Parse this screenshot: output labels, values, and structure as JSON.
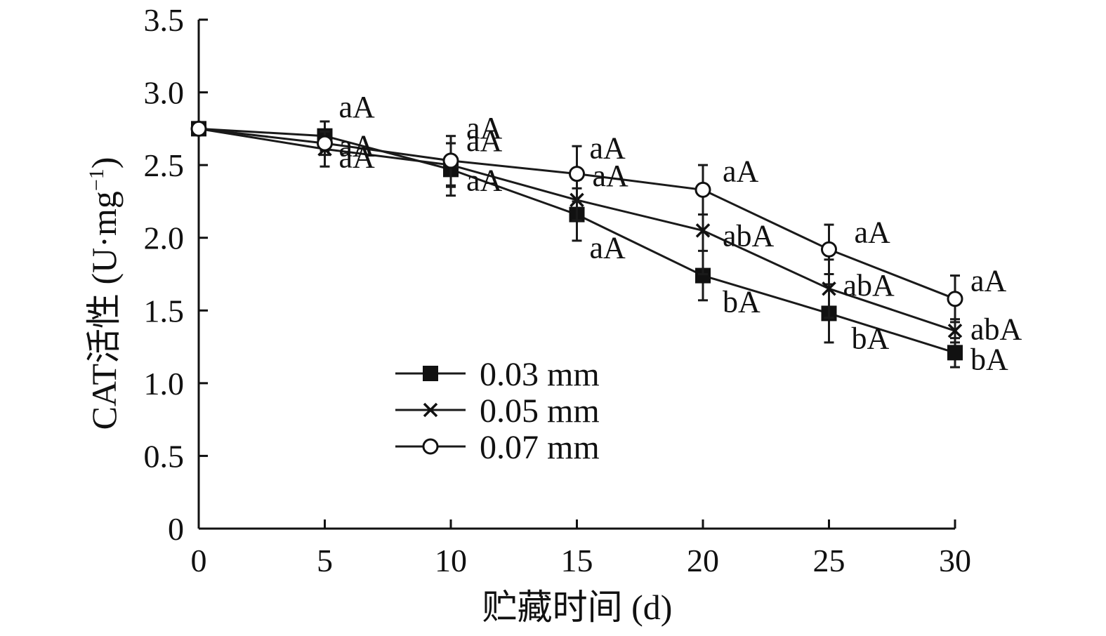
{
  "chart_data": {
    "type": "line",
    "x": [
      0,
      5,
      10,
      15,
      20,
      25,
      30
    ],
    "xlim": [
      0,
      30
    ],
    "ylim": [
      0,
      3.5
    ],
    "x_ticks": [
      "0",
      "5",
      "10",
      "15",
      "20",
      "25",
      "30"
    ],
    "y_ticks": [
      "0",
      "0.5",
      "1.0",
      "1.5",
      "2.0",
      "2.5",
      "3.0",
      "3.5"
    ],
    "xlabel": "贮藏时间 (d)",
    "ylabel": "CAT活性 (U·mg",
    "ylabel_sup": "−1",
    "ylabel_close": ")",
    "grid": false,
    "legend_position": "lower-center",
    "series": [
      {
        "name": "0.03 mm",
        "marker": "filled-square",
        "values": [
          2.75,
          2.7,
          2.47,
          2.16,
          1.74,
          1.48,
          1.21
        ],
        "errors": [
          0.04,
          0.1,
          0.18,
          0.18,
          0.17,
          0.2,
          0.1
        ],
        "labels": [
          "",
          "aA",
          "aA",
          "aA",
          "bA",
          "bA",
          "bA"
        ]
      },
      {
        "name": "0.05 mm",
        "marker": "cross",
        "values": [
          2.75,
          2.61,
          2.5,
          2.26,
          2.05,
          1.65,
          1.36
        ],
        "errors": [
          0.04,
          0.12,
          0.15,
          0.14,
          0.3,
          0.2,
          0.08
        ],
        "labels": [
          "",
          "aA",
          "aA",
          "aA",
          "abA",
          "abA",
          "abA"
        ]
      },
      {
        "name": "0.07 mm",
        "marker": "open-circle",
        "values": [
          2.75,
          2.65,
          2.53,
          2.44,
          2.33,
          1.92,
          1.58
        ],
        "errors": [
          0.04,
          0.08,
          0.17,
          0.19,
          0.17,
          0.17,
          0.16
        ],
        "labels": [
          "",
          "aA",
          "aA",
          "aA",
          "aA",
          "aA",
          "aA"
        ]
      }
    ]
  }
}
